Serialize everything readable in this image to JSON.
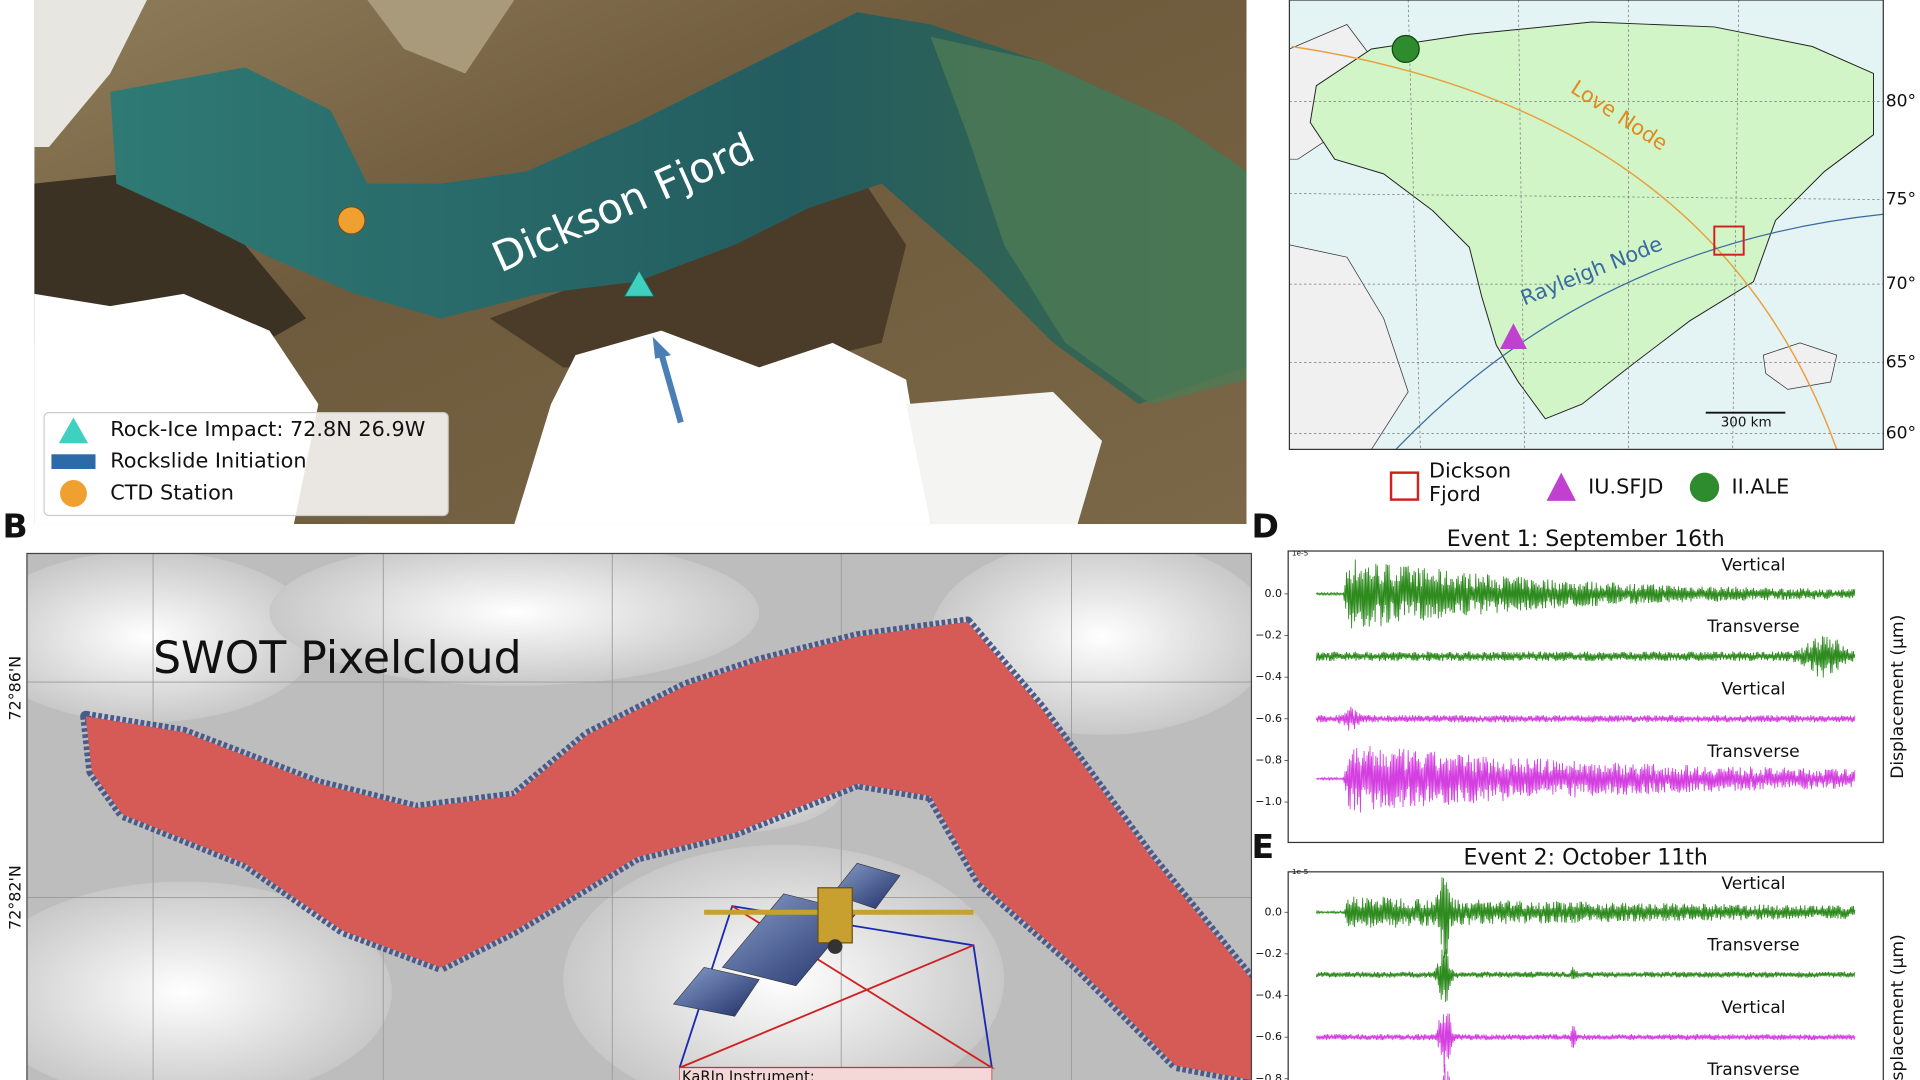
{
  "panels": {
    "a": {
      "fjord_label": "Dickson Fjord",
      "legend": [
        "Rock-Ice Impact: 72.8N 26.9W",
        "Rockslide Initiation",
        "CTD Station"
      ]
    },
    "b": {
      "label": "B",
      "title": "SWOT Pixelcloud",
      "lat_labels": [
        "72°86'N",
        "72°82'N"
      ],
      "instrument": "KaRIn Instrument:"
    },
    "c": {
      "lat_labels": [
        "80°",
        "75°",
        "70°",
        "65°",
        "60°"
      ],
      "love": "Love Node",
      "rayleigh": "Rayleigh Node",
      "scale": "300 km",
      "legend": [
        "Dickson Fjord",
        "IU.SFJD",
        "II.ALE"
      ]
    },
    "d": {
      "label": "D",
      "title": "Event 1: September 16th",
      "multiplier": "1e-5",
      "yticks": [
        "0.0",
        "−0.2",
        "−0.4",
        "−0.6",
        "−0.8",
        "−1.0"
      ],
      "traces": [
        "Vertical",
        "Transverse",
        "Vertical",
        "Transverse"
      ],
      "ylabel": "Displacement (μm)"
    },
    "e": {
      "label": "E",
      "title": "Event 2: October 11th",
      "multiplier": "1e-5",
      "yticks": [
        "0.0",
        "−0.2",
        "−0.4",
        "−0.6",
        "−0.8"
      ],
      "traces": [
        "Vertical",
        "Transverse",
        "Vertical",
        "Transverse"
      ],
      "ylabel": "Displacement (μm)"
    }
  }
}
